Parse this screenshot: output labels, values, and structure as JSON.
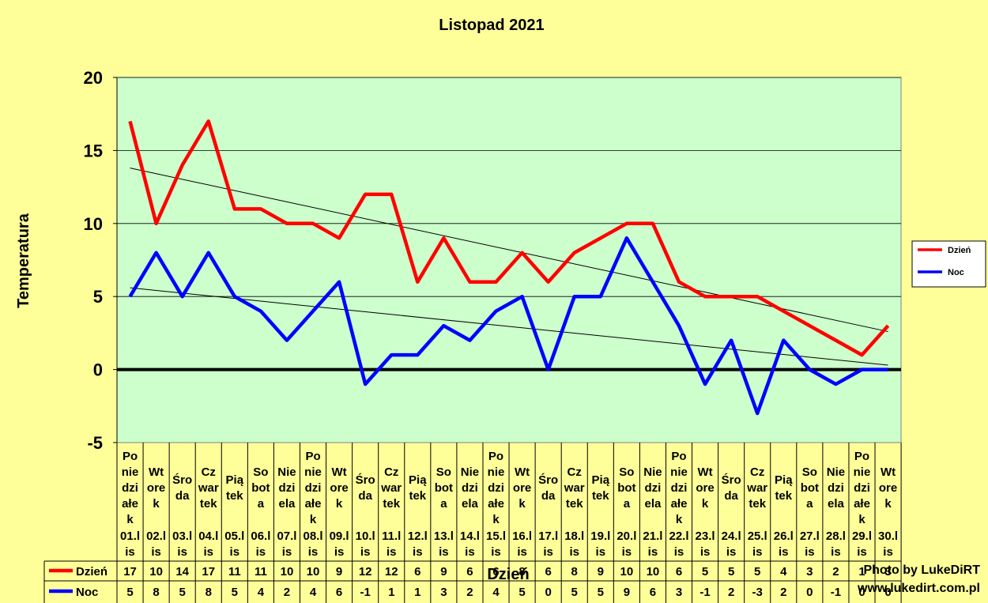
{
  "chart_data": {
    "type": "line",
    "title": "Listopad 2021",
    "ylabel": "Temperatura",
    "xlabel": "Dzień",
    "ylim": [
      -5,
      20
    ],
    "yticks": [
      -5,
      0,
      5,
      10,
      15,
      20
    ],
    "grid": true,
    "legend_position": "right",
    "plot_background": "#ccffcc",
    "page_background": "#ffff99",
    "categories": [
      {
        "weekday": [
          "Po",
          "nie",
          "dzi",
          "ałe",
          "k"
        ],
        "date": [
          "01.l",
          "is"
        ]
      },
      {
        "weekday": [
          "Wt",
          "ore",
          "k"
        ],
        "date": [
          "02.l",
          "is"
        ]
      },
      {
        "weekday": [
          "Śro",
          "da"
        ],
        "date": [
          "03.l",
          "is"
        ]
      },
      {
        "weekday": [
          "Cz",
          "war",
          "tek"
        ],
        "date": [
          "04.l",
          "is"
        ]
      },
      {
        "weekday": [
          "Pią",
          "tek"
        ],
        "date": [
          "05.l",
          "is"
        ]
      },
      {
        "weekday": [
          "So",
          "bot",
          "a"
        ],
        "date": [
          "06.l",
          "is"
        ]
      },
      {
        "weekday": [
          "Nie",
          "dzi",
          "ela"
        ],
        "date": [
          "07.l",
          "is"
        ]
      },
      {
        "weekday": [
          "Po",
          "nie",
          "dzi",
          "ałe",
          "k"
        ],
        "date": [
          "08.l",
          "is"
        ]
      },
      {
        "weekday": [
          "Wt",
          "ore",
          "k"
        ],
        "date": [
          "09.l",
          "is"
        ]
      },
      {
        "weekday": [
          "Śro",
          "da"
        ],
        "date": [
          "10.l",
          "is"
        ]
      },
      {
        "weekday": [
          "Cz",
          "war",
          "tek"
        ],
        "date": [
          "11.l",
          "is"
        ]
      },
      {
        "weekday": [
          "Pią",
          "tek"
        ],
        "date": [
          "12.l",
          "is"
        ]
      },
      {
        "weekday": [
          "So",
          "bot",
          "a"
        ],
        "date": [
          "13.l",
          "is"
        ]
      },
      {
        "weekday": [
          "Nie",
          "dzi",
          "ela"
        ],
        "date": [
          "14.l",
          "is"
        ]
      },
      {
        "weekday": [
          "Po",
          "nie",
          "dzi",
          "ałe",
          "k"
        ],
        "date": [
          "15.l",
          "is"
        ]
      },
      {
        "weekday": [
          "Wt",
          "ore",
          "k"
        ],
        "date": [
          "16.l",
          "is"
        ]
      },
      {
        "weekday": [
          "Śro",
          "da"
        ],
        "date": [
          "17.l",
          "is"
        ]
      },
      {
        "weekday": [
          "Cz",
          "war",
          "tek"
        ],
        "date": [
          "18.l",
          "is"
        ]
      },
      {
        "weekday": [
          "Pią",
          "tek"
        ],
        "date": [
          "19.l",
          "is"
        ]
      },
      {
        "weekday": [
          "So",
          "bot",
          "a"
        ],
        "date": [
          "20.l",
          "is"
        ]
      },
      {
        "weekday": [
          "Nie",
          "dzi",
          "ela"
        ],
        "date": [
          "21.l",
          "is"
        ]
      },
      {
        "weekday": [
          "Po",
          "nie",
          "dzi",
          "ałe",
          "k"
        ],
        "date": [
          "22.l",
          "is"
        ]
      },
      {
        "weekday": [
          "Wt",
          "ore",
          "k"
        ],
        "date": [
          "23.l",
          "is"
        ]
      },
      {
        "weekday": [
          "Śro",
          "da"
        ],
        "date": [
          "24.l",
          "is"
        ]
      },
      {
        "weekday": [
          "Cz",
          "war",
          "tek"
        ],
        "date": [
          "25.l",
          "is"
        ]
      },
      {
        "weekday": [
          "Pią",
          "tek"
        ],
        "date": [
          "26.l",
          "is"
        ]
      },
      {
        "weekday": [
          "So",
          "bot",
          "a"
        ],
        "date": [
          "27.l",
          "is"
        ]
      },
      {
        "weekday": [
          "Nie",
          "dzi",
          "ela"
        ],
        "date": [
          "28.l",
          "is"
        ]
      },
      {
        "weekday": [
          "Po",
          "nie",
          "dzi",
          "ałe",
          "k"
        ],
        "date": [
          "29.l",
          "is"
        ]
      },
      {
        "weekday": [
          "Wt",
          "ore",
          "k"
        ],
        "date": [
          "30.l",
          "is"
        ]
      }
    ],
    "series": [
      {
        "name": "Dzień",
        "color": "#ff0000",
        "values": [
          17,
          10,
          14,
          17,
          11,
          11,
          10,
          10,
          9,
          12,
          12,
          6,
          9,
          6,
          6,
          8,
          6,
          8,
          9,
          10,
          10,
          6,
          5,
          5,
          5,
          4,
          3,
          2,
          1,
          3
        ],
        "trendline": [
          13.8,
          2.6
        ]
      },
      {
        "name": "Noc",
        "color": "#0000ff",
        "values": [
          5,
          8,
          5,
          8,
          5,
          4,
          2,
          4,
          6,
          -1,
          1,
          1,
          3,
          2,
          4,
          5,
          0,
          5,
          5,
          9,
          6,
          3,
          -1,
          2,
          -3,
          2,
          0,
          -1,
          0,
          0
        ],
        "trendline": [
          5.6,
          0.3
        ]
      }
    ]
  },
  "credits": {
    "line1": "Photo by LukeDiRT",
    "line2": "www.lukedirt.com.pl"
  }
}
